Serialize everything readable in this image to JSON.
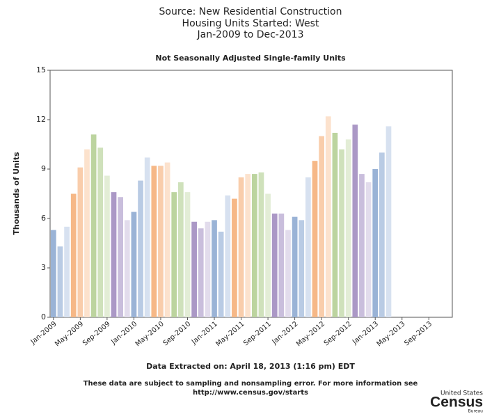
{
  "chart_data": {
    "type": "bar",
    "title": [
      "Source: New Residential Construction",
      "Housing Units Started: West",
      "Jan-2009 to Dec-2013"
    ],
    "subtitle": "Not Seasonally Adjusted Single-family Units",
    "y_label": "Thousands of Units",
    "categories": [
      "Jan-2009",
      null,
      null,
      null,
      "May-2009",
      null,
      null,
      null,
      "Sep-2009",
      null,
      null,
      null,
      "Jan-2010",
      null,
      null,
      null,
      "May-2010",
      null,
      null,
      null,
      "Sep-2010",
      null,
      null,
      null,
      "Jan-2011",
      null,
      null,
      null,
      "May-2011",
      null,
      null,
      null,
      "Sep-2011",
      null,
      null,
      null,
      "Jan-2012",
      null,
      null,
      null,
      "May-2012",
      null,
      null,
      null,
      "Sep-2012",
      null,
      null,
      null,
      "Jan-2013",
      null,
      null,
      null,
      "May-2013",
      null,
      null,
      null,
      "Sep-2013",
      null,
      null,
      null
    ],
    "values": [
      5.3,
      4.3,
      5.5,
      7.5,
      9.1,
      10.2,
      11.1,
      10.3,
      8.6,
      7.6,
      7.3,
      5.9,
      6.4,
      8.3,
      9.7,
      9.2,
      9.2,
      9.4,
      7.6,
      8.2,
      7.6,
      5.8,
      5.4,
      5.8,
      5.9,
      5.2,
      7.4,
      7.2,
      8.5,
      8.7,
      8.7,
      8.8,
      7.5,
      6.3,
      6.3,
      5.3,
      6.1,
      5.9,
      8.5,
      9.5,
      11.0,
      12.2,
      11.2,
      10.2,
      10.8,
      11.7,
      8.7,
      8.2,
      9.0,
      10.0,
      11.6,
      null,
      null,
      null,
      null,
      null,
      null,
      null,
      null,
      null
    ],
    "colors": [
      "#9ab3d6",
      "#b9cbe4",
      "#d7e1f0",
      "#f6b887",
      "#f9cdab",
      "#fce2cd",
      "#bcd49f",
      "#cfe1bb",
      "#e3edd6",
      "#ab98c6",
      "#c9bedc",
      "#e2dcec"
    ],
    "ylim": [
      0,
      15
    ],
    "yticks": [
      0,
      3,
      6,
      9,
      12,
      15
    ],
    "grid": false,
    "footer": [
      "Data Extracted on: April 18, 2013 (1:16 pm) EDT",
      "These data are subject to sampling and nonsampling error. For more information see",
      "http://www.census.gov/starts"
    ],
    "logo": [
      "United States",
      "Census",
      "Bureau"
    ]
  }
}
